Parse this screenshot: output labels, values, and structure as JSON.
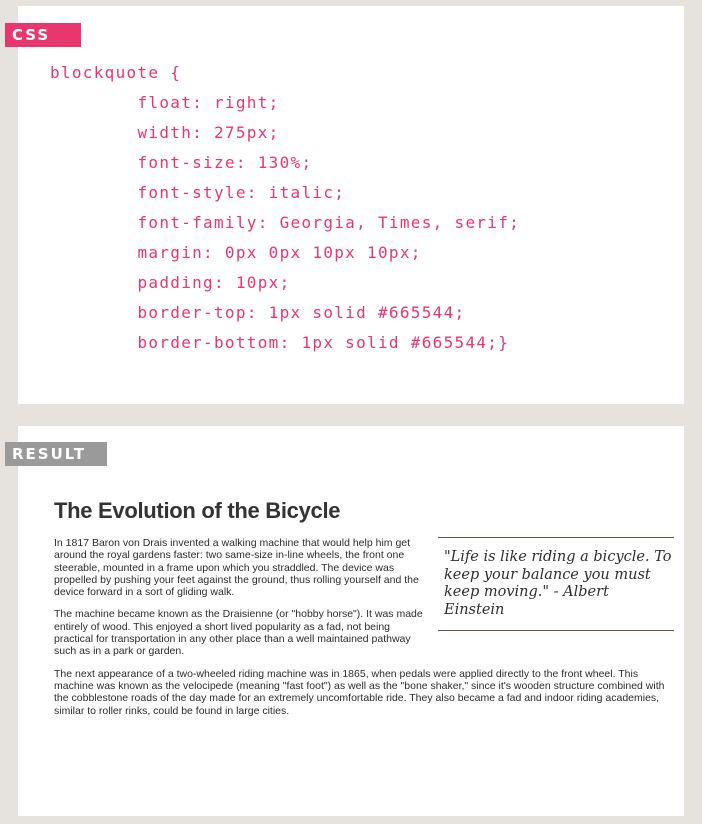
{
  "css_label": "CSS",
  "result_label": "RESULT",
  "code": {
    "lines": [
      "blockquote {",
      "        float: right;",
      "        width: 275px;",
      "        font-size: 130%;",
      "        font-style: italic;",
      "        font-family: Georgia, Times, serif;",
      "        margin: 0px 0px 10px 10px;",
      "        padding: 10px;",
      "        border-top: 1px solid #665544;",
      "        border-bottom: 1px solid #665544;}"
    ]
  },
  "result": {
    "title": "The Evolution of the Bicycle",
    "quote": "\"Life is like riding a bicycle. To keep your balance you must keep moving.\" - Albert Einstein",
    "paragraphs": [
      "In 1817 Baron von Drais invented a walking machine that would help him get around the royal gardens faster: two same-size in-line wheels, the front one steerable, mounted in a frame upon which you straddled. The device was propelled by pushing your feet against the ground, thus rolling yourself and the device forward in a sort of gliding walk.",
      "The machine became known as the Draisienne (or \"hobby horse\"). It was made entirely of wood. This enjoyed a short lived popularity as a fad, not being practical for transportation in any other place than a well maintained pathway such as in a park or garden.",
      "The next appearance of a two-wheeled riding machine was in 1865, when pedals were applied directly to the front wheel. This machine was known as the velocipede (meaning \"fast foot\") as well as the \"bone shaker,\" since it's wooden structure combined with the cobblestone roads of the day made for an extremely uncomfortable ride. They also became a fad and indoor riding academies, similar to roller rinks, could be found in large cities."
    ]
  },
  "colors": {
    "accent": "#e8366e",
    "result_label_bg": "#9a9a9a",
    "background": "#e6e2de",
    "border": "#665544"
  }
}
